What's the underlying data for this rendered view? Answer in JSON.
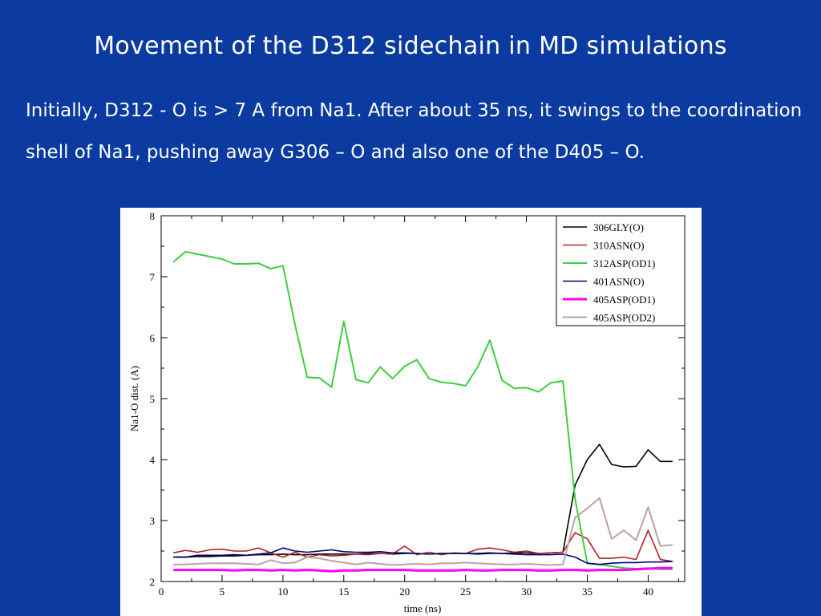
{
  "slide": {
    "title": "Movement of the D312 sidechain in MD simulations",
    "body": "Initially, D312 - O is > 7 A from Na1.  After about 35 ns, it swings to the coordination shell of Na1, pushing away G306 – O and also one of the D405 – O."
  },
  "chart_data": {
    "type": "line",
    "xlabel": "time (ns)",
    "ylabel": "Na1-O dist. (A)",
    "xlim": [
      0,
      43
    ],
    "ylim": [
      2,
      8
    ],
    "xticks": [
      0,
      5,
      10,
      15,
      20,
      25,
      30,
      35,
      40
    ],
    "yticks": [
      2,
      3,
      4,
      5,
      6,
      7,
      8
    ],
    "legend_position": "top-right",
    "grid": false,
    "x": [
      1,
      2,
      3,
      4,
      5,
      6,
      7,
      8,
      9,
      10,
      11,
      12,
      13,
      14,
      15,
      16,
      17,
      18,
      19,
      20,
      21,
      22,
      23,
      24,
      25,
      26,
      27,
      28,
      29,
      30,
      31,
      32,
      33,
      34,
      35,
      36,
      37,
      38,
      39,
      40,
      41,
      42
    ],
    "series": [
      {
        "name": "306GLY(O)",
        "color": "#000000",
        "values": [
          2.4,
          2.4,
          2.41,
          2.41,
          2.42,
          2.42,
          2.43,
          2.44,
          2.44,
          2.45,
          2.44,
          2.44,
          2.45,
          2.45,
          2.45,
          2.45,
          2.46,
          2.46,
          2.45,
          2.46,
          2.46,
          2.45,
          2.46,
          2.46,
          2.46,
          2.46,
          2.47,
          2.46,
          2.47,
          2.47,
          2.46,
          2.47,
          2.48,
          3.58,
          4.0,
          4.25,
          3.92,
          3.88,
          3.89,
          4.16,
          3.97,
          3.97
        ]
      },
      {
        "name": "310ASN(O)",
        "color": "#b22222",
        "values": [
          2.47,
          2.51,
          2.48,
          2.52,
          2.53,
          2.5,
          2.5,
          2.55,
          2.47,
          2.4,
          2.48,
          2.4,
          2.44,
          2.42,
          2.43,
          2.45,
          2.44,
          2.46,
          2.45,
          2.58,
          2.44,
          2.48,
          2.44,
          2.47,
          2.46,
          2.53,
          2.55,
          2.52,
          2.48,
          2.5,
          2.46,
          2.47,
          2.48,
          2.8,
          2.7,
          2.38,
          2.38,
          2.4,
          2.36,
          2.84,
          2.36,
          2.33
        ]
      },
      {
        "name": "312ASP(OD1)",
        "color": "#3ccf3c",
        "values": [
          7.24,
          7.41,
          7.37,
          7.33,
          7.29,
          7.21,
          7.21,
          7.22,
          7.13,
          7.18,
          6.21,
          5.35,
          5.34,
          5.19,
          6.27,
          5.31,
          5.26,
          5.52,
          5.33,
          5.53,
          5.64,
          5.33,
          5.27,
          5.25,
          5.21,
          5.52,
          5.96,
          5.3,
          5.17,
          5.18,
          5.11,
          5.26,
          5.29,
          3.35,
          2.3,
          2.28,
          2.25,
          2.22,
          2.21,
          2.22,
          2.2,
          2.2
        ]
      },
      {
        "name": "401ASN(O)",
        "color": "#000080",
        "values": [
          2.4,
          2.4,
          2.43,
          2.43,
          2.43,
          2.44,
          2.43,
          2.45,
          2.47,
          2.55,
          2.5,
          2.48,
          2.5,
          2.52,
          2.49,
          2.48,
          2.48,
          2.49,
          2.47,
          2.47,
          2.46,
          2.45,
          2.46,
          2.46,
          2.46,
          2.45,
          2.46,
          2.46,
          2.45,
          2.44,
          2.44,
          2.44,
          2.45,
          2.4,
          2.3,
          2.28,
          2.3,
          2.31,
          2.31,
          2.32,
          2.32,
          2.33
        ]
      },
      {
        "name": "405ASP(OD1)",
        "color": "#ff00ff",
        "values": [
          2.19,
          2.19,
          2.19,
          2.19,
          2.19,
          2.18,
          2.19,
          2.19,
          2.18,
          2.19,
          2.18,
          2.19,
          2.18,
          2.17,
          2.18,
          2.18,
          2.19,
          2.19,
          2.19,
          2.19,
          2.18,
          2.18,
          2.18,
          2.18,
          2.19,
          2.18,
          2.18,
          2.19,
          2.19,
          2.19,
          2.18,
          2.18,
          2.19,
          2.19,
          2.18,
          2.19,
          2.19,
          2.19,
          2.2,
          2.21,
          2.22,
          2.22
        ]
      },
      {
        "name": "405ASP(OD2)",
        "color": "#c0a0a8",
        "values": [
          2.28,
          2.28,
          2.29,
          2.3,
          2.3,
          2.3,
          2.29,
          2.28,
          2.35,
          2.3,
          2.31,
          2.4,
          2.38,
          2.34,
          2.31,
          2.28,
          2.31,
          2.29,
          2.27,
          2.28,
          2.29,
          2.28,
          2.3,
          2.3,
          2.31,
          2.3,
          2.29,
          2.28,
          2.28,
          2.29,
          2.28,
          2.27,
          2.28,
          3.05,
          3.2,
          3.37,
          2.7,
          2.84,
          2.68,
          3.22,
          2.58,
          2.6
        ]
      }
    ]
  }
}
